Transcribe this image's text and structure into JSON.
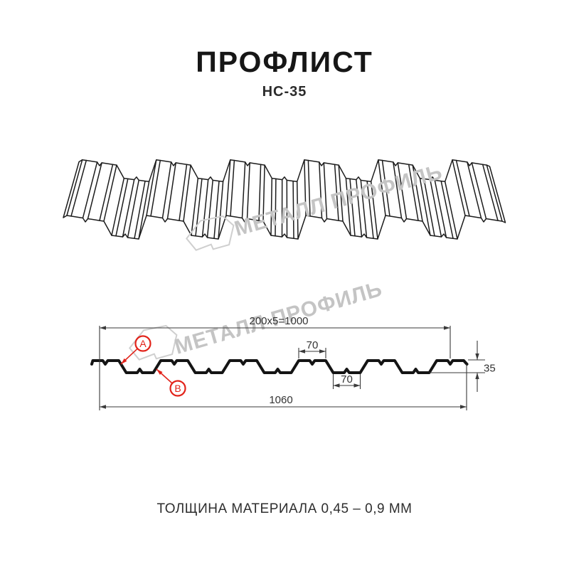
{
  "header": {
    "title": "ПРОФЛИСТ",
    "subtitle": "НС-35"
  },
  "footer": {
    "material_note": "ТОЛЩИНА МАТЕРИАЛА 0,45 – 0,9 ММ"
  },
  "watermark": {
    "text": "МЕТАЛЛ ПРОФИЛЬ",
    "text_color": "#c4c4c4",
    "logo_color": "#cfcfcf"
  },
  "figure": {
    "dims": {
      "module": "200x5=1000",
      "crest_width": "70",
      "valley_width": "70",
      "height": "35",
      "overall_width": "1060"
    },
    "callouts": {
      "a": "А",
      "b": "В"
    },
    "colors": {
      "accent": "#e2231a",
      "line": "#3a3a3a",
      "profile": "#141414",
      "sheet": "#1c1c1c"
    },
    "profile_spec": {
      "period_mm": 200,
      "periods": 5,
      "crest_mm": 70,
      "valley_mm": 70,
      "height_mm": 35,
      "overall_mm": 1060
    }
  }
}
